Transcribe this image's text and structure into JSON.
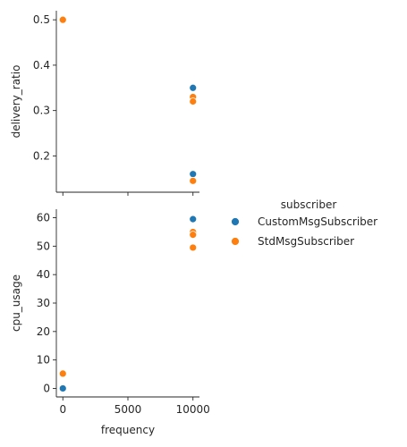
{
  "chart_data": {
    "type": "scatter",
    "layout": "pairgrid",
    "x_variable": "frequency",
    "hue_variable": "subscriber",
    "legend": {
      "title": "subscriber",
      "entries": [
        {
          "name": "CustomMsgSubscriber",
          "color": "#1f77b4"
        },
        {
          "name": "StdMsgSubscriber",
          "color": "#ff7f0e"
        }
      ],
      "placement": "right"
    },
    "xlabel": "frequency",
    "xlim": [
      -500,
      10500
    ],
    "xticks": [
      0,
      5000,
      10000
    ],
    "xtick_labels": [
      "0",
      "5000",
      "10000"
    ],
    "panels": [
      {
        "ylabel": "delivery_ratio",
        "ylim": [
          0.12,
          0.52
        ],
        "yticks": [
          0.2,
          0.3,
          0.4,
          0.5
        ],
        "ytick_labels": [
          "0.2",
          "0.3",
          "0.4",
          "0.5"
        ],
        "show_xtick_labels": false,
        "series": [
          {
            "name": "CustomMsgSubscriber",
            "points": [
              [
                0,
                0.5
              ],
              [
                10000,
                0.35
              ],
              [
                10000,
                0.16
              ],
              [
                10000,
                0.33
              ]
            ]
          },
          {
            "name": "StdMsgSubscriber",
            "points": [
              [
                0,
                0.5
              ],
              [
                10000,
                0.33
              ],
              [
                10000,
                0.32
              ],
              [
                10000,
                0.145
              ]
            ]
          }
        ]
      },
      {
        "ylabel": "cpu_usage",
        "ylim": [
          -3,
          63
        ],
        "yticks": [
          0,
          10,
          20,
          30,
          40,
          50,
          60
        ],
        "ytick_labels": [
          "0",
          "10",
          "20",
          "30",
          "40",
          "50",
          "60"
        ],
        "show_xtick_labels": true,
        "series": [
          {
            "name": "CustomMsgSubscriber",
            "points": [
              [
                0,
                0
              ],
              [
                10000,
                59.5
              ]
            ]
          },
          {
            "name": "StdMsgSubscriber",
            "points": [
              [
                0,
                5.2
              ],
              [
                10000,
                55
              ],
              [
                10000,
                54
              ],
              [
                10000,
                49.5
              ]
            ]
          }
        ]
      }
    ]
  }
}
